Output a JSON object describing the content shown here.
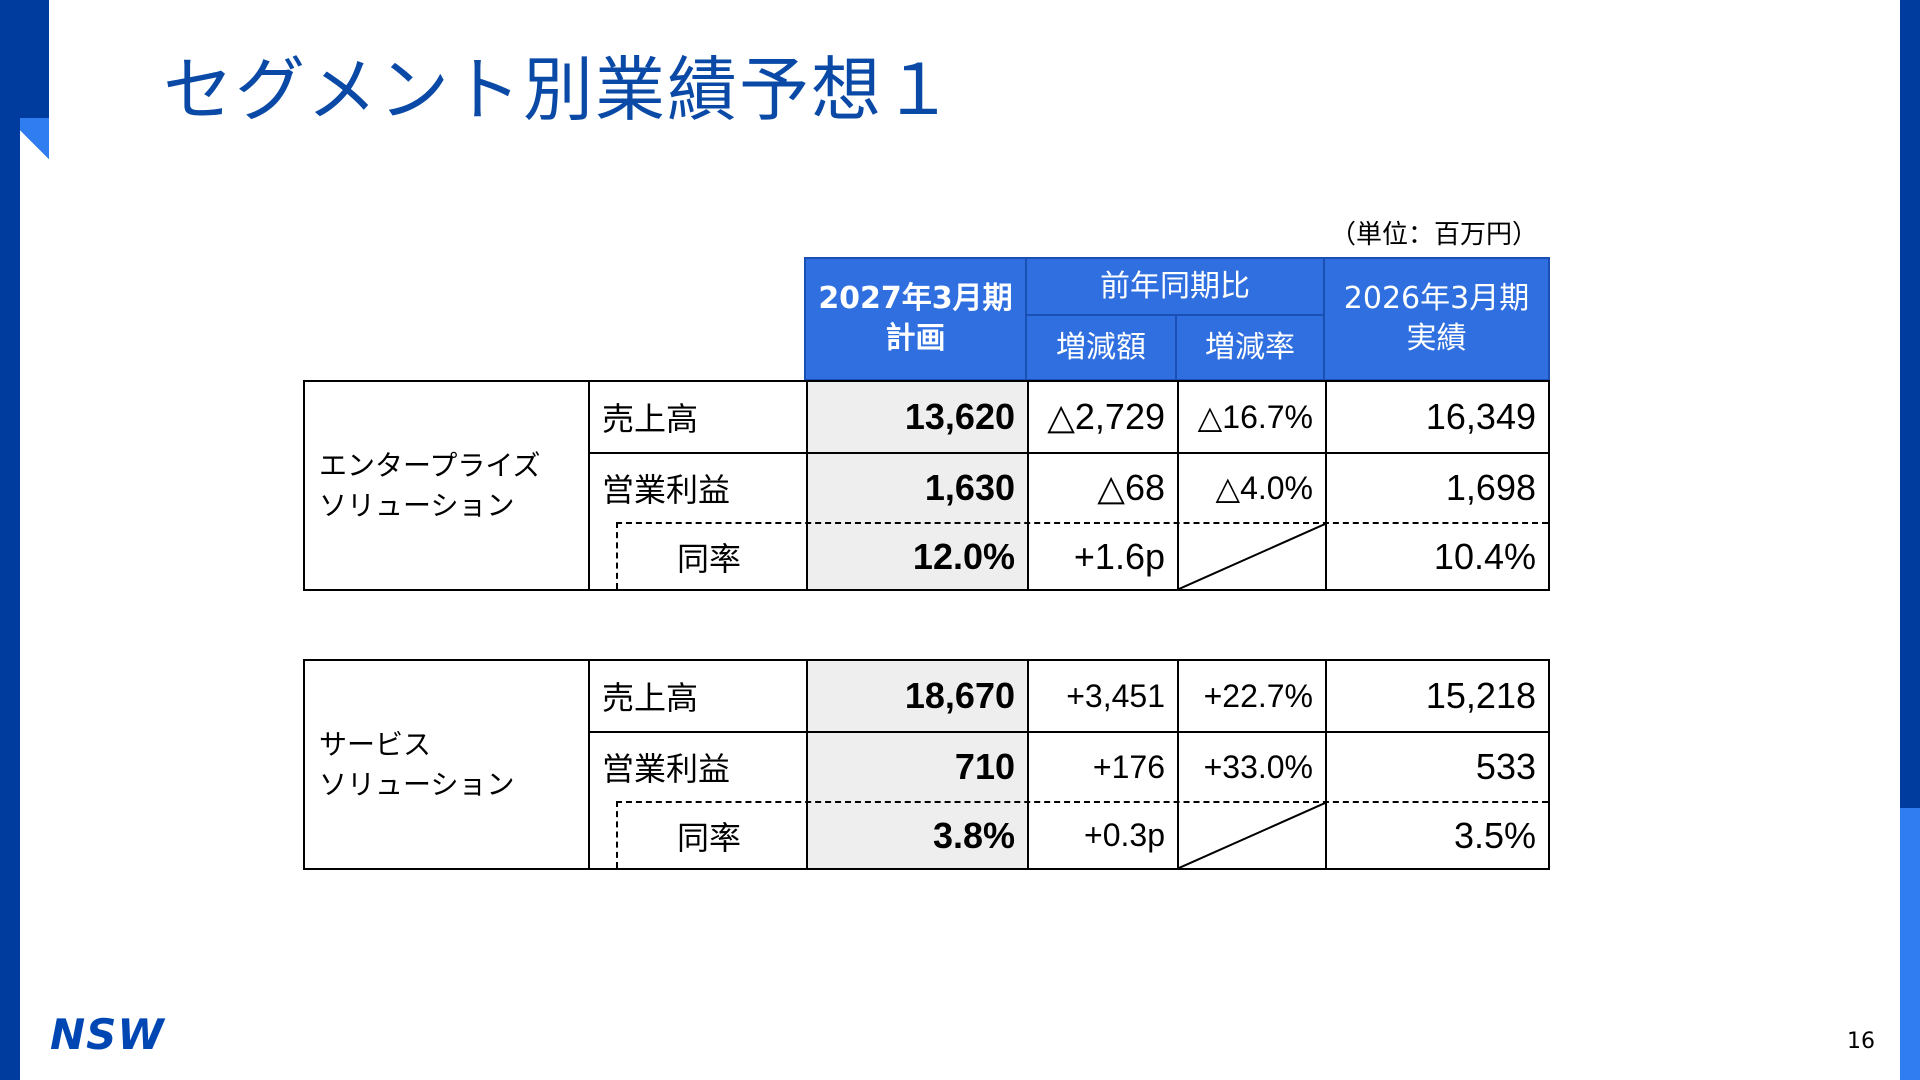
{
  "title": "セグメント別業績予想１",
  "unit_label": "（単位：百万円）",
  "logo_text": "NSW",
  "page_number": "16",
  "colors": {
    "brand_dark": "#003c9e",
    "brand_light": "#2f7df0",
    "header_bg": "#2f6fe0",
    "plan_bg": "#eeeeee"
  },
  "header": {
    "plan_line1": "2027年3月期",
    "plan_line2": "計画",
    "yoy": "前年同期比",
    "change_amount": "増減額",
    "change_rate": "増減率",
    "actual_line1": "2026年3月期",
    "actual_line2": "実績"
  },
  "segments": [
    {
      "name_line1": "エンタープライズ",
      "name_line2": "ソリューション",
      "rows": [
        {
          "label": "売上高",
          "plan": "13,620",
          "amount": "△2,729",
          "rate": "△16.7%",
          "actual": "16,349"
        },
        {
          "label": "営業利益",
          "plan": "1,630",
          "amount": "△68",
          "rate": "△4.0%",
          "actual": "1,698"
        },
        {
          "label": "同率",
          "plan": "12.0%",
          "amount": "+1.6p",
          "rate": "",
          "actual": "10.4%"
        }
      ]
    },
    {
      "name_line1": "サービス",
      "name_line2": "ソリューション",
      "rows": [
        {
          "label": "売上高",
          "plan": "18,670",
          "amount": "+3,451",
          "rate": "+22.7%",
          "actual": "15,218"
        },
        {
          "label": "営業利益",
          "plan": "710",
          "amount": "+176",
          "rate": "+33.0%",
          "actual": "533"
        },
        {
          "label": "同率",
          "plan": "3.8%",
          "amount": "+0.3p",
          "rate": "",
          "actual": "3.5%"
        }
      ]
    }
  ]
}
